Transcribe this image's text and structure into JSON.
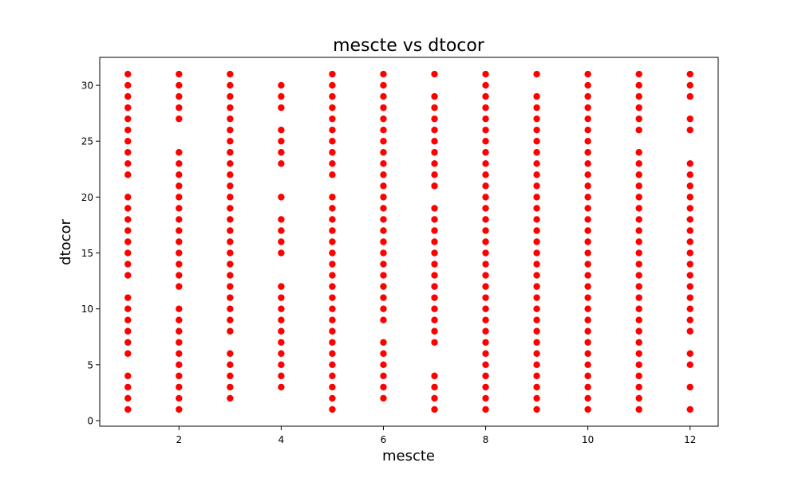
{
  "chart_data": {
    "type": "scatter",
    "title": "mescte vs dtocor",
    "xlabel": "mescte",
    "ylabel": "dtocor",
    "xlim": [
      0.45,
      12.55
    ],
    "ylim": [
      -0.5,
      32.5
    ],
    "xticks": [
      2,
      4,
      6,
      8,
      10,
      12
    ],
    "yticks": [
      0,
      5,
      10,
      15,
      20,
      25,
      30
    ],
    "grid": false,
    "legend": "none",
    "color": "#ff0000",
    "series": [
      {
        "points": [
          {
            "x": 1,
            "y": [
              1,
              2,
              3,
              4,
              6,
              7,
              8,
              9,
              10,
              11,
              13,
              14,
              15,
              16,
              17,
              18,
              19,
              20,
              22,
              23,
              24,
              25,
              26,
              27,
              28,
              29,
              30,
              31
            ]
          },
          {
            "x": 2,
            "y": [
              1,
              2,
              3,
              4,
              5,
              6,
              7,
              8,
              9,
              10,
              12,
              13,
              14,
              15,
              16,
              17,
              18,
              19,
              20,
              21,
              22,
              23,
              24,
              27,
              28,
              29,
              30,
              31
            ]
          },
          {
            "x": 3,
            "y": [
              2,
              3,
              4,
              5,
              6,
              8,
              9,
              10,
              11,
              12,
              13,
              14,
              15,
              16,
              17,
              18,
              19,
              20,
              21,
              22,
              23,
              24,
              25,
              26,
              27,
              28,
              29,
              30,
              31
            ]
          },
          {
            "x": 4,
            "y": [
              3,
              4,
              5,
              6,
              7,
              8,
              9,
              10,
              11,
              12,
              15,
              16,
              17,
              18,
              20,
              23,
              24,
              25,
              26,
              28,
              29,
              30
            ]
          },
          {
            "x": 5,
            "y": [
              1,
              2,
              3,
              4,
              5,
              6,
              7,
              8,
              9,
              10,
              11,
              12,
              13,
              14,
              15,
              16,
              17,
              18,
              19,
              20,
              22,
              23,
              24,
              25,
              26,
              27,
              28,
              29,
              30,
              31
            ]
          },
          {
            "x": 6,
            "y": [
              2,
              3,
              4,
              5,
              6,
              7,
              9,
              10,
              11,
              12,
              13,
              14,
              15,
              16,
              17,
              18,
              19,
              20,
              21,
              22,
              23,
              24,
              25,
              26,
              27,
              28,
              29,
              30,
              31
            ]
          },
          {
            "x": 7,
            "y": [
              1,
              2,
              3,
              4,
              7,
              8,
              9,
              10,
              11,
              12,
              13,
              14,
              15,
              16,
              17,
              18,
              19,
              21,
              22,
              23,
              24,
              25,
              26,
              27,
              28,
              29,
              31
            ]
          },
          {
            "x": 8,
            "y": [
              1,
              2,
              3,
              4,
              5,
              6,
              7,
              8,
              9,
              10,
              11,
              12,
              13,
              14,
              15,
              16,
              17,
              18,
              19,
              20,
              21,
              22,
              23,
              24,
              25,
              26,
              27,
              28,
              29,
              30,
              31
            ]
          },
          {
            "x": 9,
            "y": [
              1,
              2,
              3,
              4,
              5,
              6,
              7,
              8,
              9,
              10,
              11,
              12,
              13,
              14,
              15,
              16,
              17,
              18,
              19,
              20,
              21,
              22,
              23,
              24,
              25,
              26,
              27,
              28,
              29,
              31
            ]
          },
          {
            "x": 10,
            "y": [
              1,
              2,
              3,
              4,
              5,
              6,
              7,
              8,
              9,
              10,
              11,
              12,
              13,
              14,
              15,
              16,
              17,
              18,
              19,
              20,
              21,
              22,
              23,
              24,
              25,
              26,
              27,
              28,
              29,
              30,
              31
            ]
          },
          {
            "x": 11,
            "y": [
              1,
              2,
              3,
              4,
              5,
              6,
              7,
              8,
              9,
              10,
              11,
              12,
              13,
              14,
              15,
              16,
              17,
              18,
              19,
              20,
              21,
              22,
              23,
              24,
              26,
              27,
              28,
              29,
              30,
              31
            ]
          },
          {
            "x": 12,
            "y": [
              1,
              3,
              5,
              6,
              8,
              9,
              10,
              11,
              12,
              13,
              14,
              15,
              16,
              17,
              18,
              19,
              20,
              21,
              22,
              23,
              26,
              27,
              29,
              30,
              31
            ]
          }
        ]
      }
    ]
  }
}
